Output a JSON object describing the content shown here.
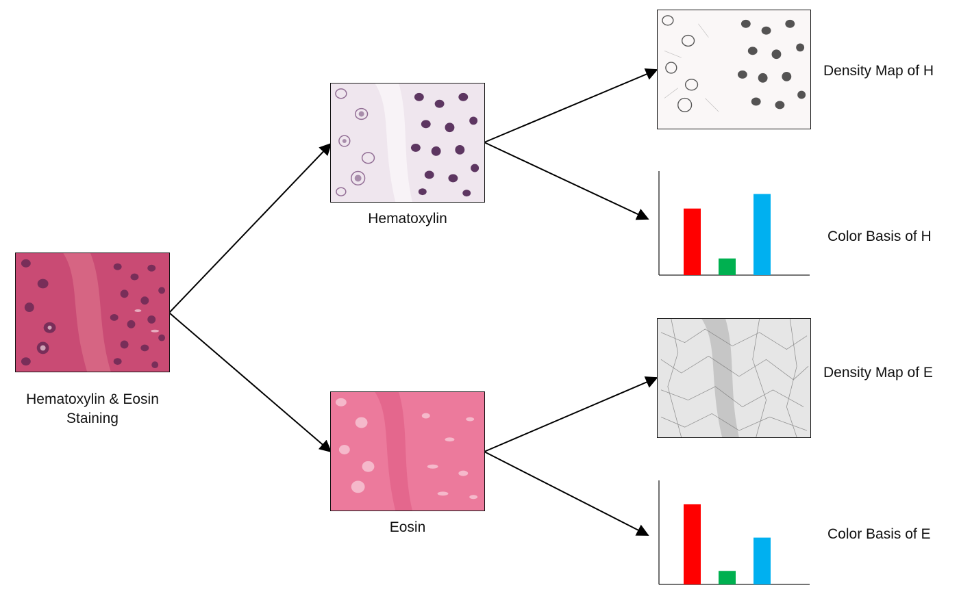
{
  "source": {
    "label_line1": "Hematoxylin & Eosin",
    "label_line2": "Staining"
  },
  "hematoxylin": {
    "label": "Hematoxylin"
  },
  "eosin": {
    "label": "Eosin"
  },
  "outputs": {
    "density_h": "Density Map of H",
    "color_h": "Color Basis of H",
    "density_e": "Density Map of E",
    "color_e": "Color Basis of E"
  },
  "color_basis_h": {
    "values": {
      "red": 0.64,
      "green": 0.16,
      "blue": 0.78
    }
  },
  "color_basis_e": {
    "values": {
      "red": 0.77,
      "green": 0.13,
      "blue": 0.45
    }
  },
  "colors": {
    "red": "#ff0000",
    "green": "#00b050",
    "blue": "#00b0f0",
    "he_stain": "#c8456f",
    "hematoxylin": "#5a2a60",
    "eosin": "#ec7a9c"
  }
}
